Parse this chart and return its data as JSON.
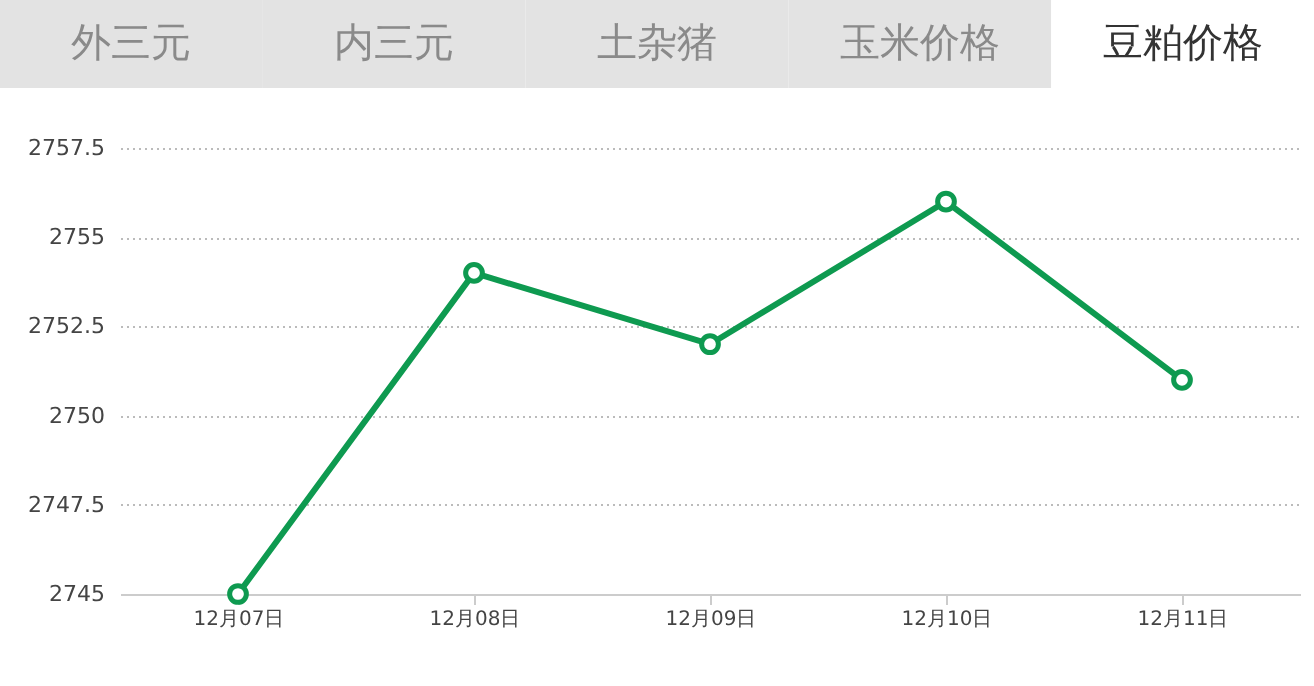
{
  "chart_data": {
    "type": "line",
    "title": "豆粕价格",
    "annotations": [
      "外三元",
      "内三元",
      "土杂猪",
      "玉米价格"
    ],
    "categories": [
      "12月07日",
      "12月08日",
      "12月09日",
      "12月10日",
      "12月11日"
    ],
    "series": [
      {
        "color": "#0e9a50",
        "values": [
          2745,
          2754,
          2752,
          2756,
          2751
        ]
      }
    ],
    "ylim": [
      2745,
      2757.5
    ],
    "yticks": [
      2745,
      {
        "value": 2747.5,
        "label": "2747.5"
      },
      2750,
      {
        "value": 2752.5,
        "label": "2752.5"
      },
      2755,
      {
        "value": 2757.5,
        "label": "2757.5"
      }
    ],
    "grid": "y",
    "marker": "circle",
    "line_style": "solid"
  }
}
